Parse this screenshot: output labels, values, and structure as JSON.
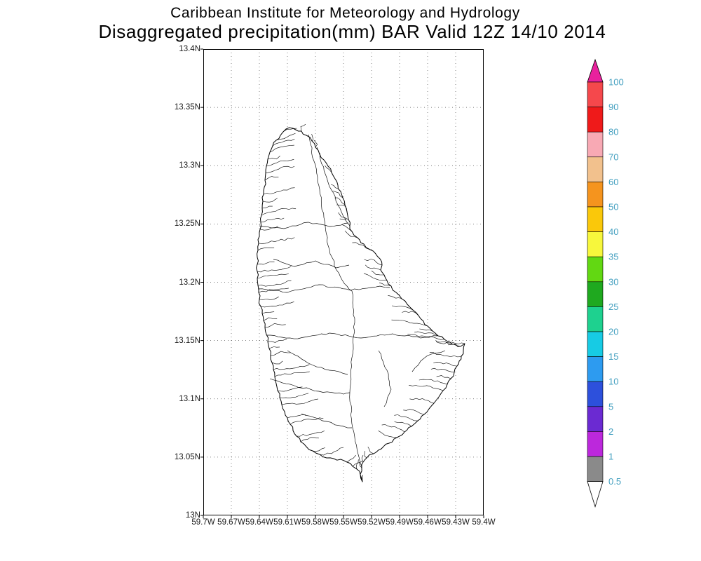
{
  "title": {
    "line1": "Caribbean Institute for Meteorology and Hydrology",
    "line2": "Disaggregated precipitation(mm) BAR Valid 12Z 14/10 2014"
  },
  "axes": {
    "y_ticks": [
      "13.4N",
      "13.35N",
      "13.3N",
      "13.25N",
      "13.2N",
      "13.15N",
      "13.1N",
      "13.05N",
      "13N"
    ],
    "x_ticks": [
      "59.7W",
      "59.67W",
      "59.64W",
      "59.61W",
      "59.58W",
      "59.55W",
      "59.52W",
      "59.49W",
      "59.46W",
      "59.43W",
      "59.4W"
    ]
  },
  "colorbar": {
    "label_color": "#45a0c0",
    "outline_color": "#000000",
    "over_color": "#e9219d",
    "under_color": "#ffffff",
    "boundaries": [
      "100",
      "90",
      "80",
      "70",
      "60",
      "50",
      "40",
      "35",
      "30",
      "25",
      "20",
      "15",
      "10",
      "5",
      "2",
      "1",
      "0.5"
    ],
    "segment_colors": [
      "#f5484c",
      "#ef1a1a",
      "#f8a9b4",
      "#f2c18d",
      "#f5941e",
      "#fac80a",
      "#f7f73c",
      "#62d812",
      "#1fa91f",
      "#1ed18f",
      "#17cbe4",
      "#2d9bf0",
      "#2d50dc",
      "#6b2ad2",
      "#bc28dc",
      "#8a8a8a"
    ]
  },
  "map": {
    "land_fill": "#ffffff",
    "coast_color": "#000000",
    "grid_color": "#555555"
  }
}
